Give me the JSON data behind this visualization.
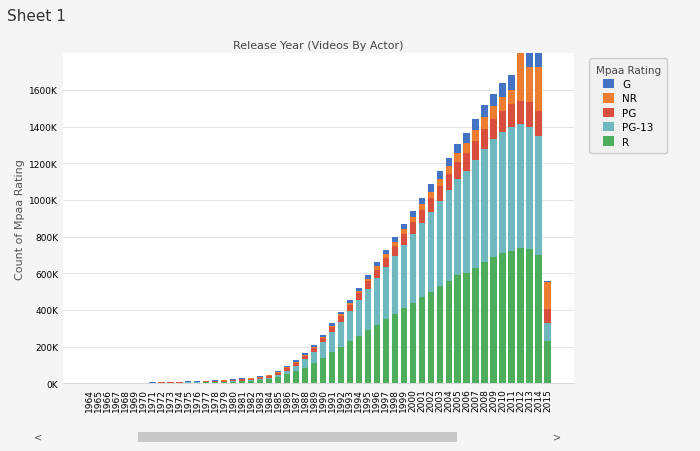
{
  "title": "Release Year (Videos By Actor)",
  "sheet_label": "Sheet 1",
  "ylabel": "Count of Mpaa Rating",
  "ratings": [
    "R",
    "PG-13",
    "PG",
    "NR",
    "G"
  ],
  "colors": {
    "G": "#4472C4",
    "NR": "#ED7D31",
    "PG": "#D94F3D",
    "PG-13": "#70B8C0",
    "R": "#4EAD5B"
  },
  "years": [
    1964,
    1965,
    1966,
    1967,
    1968,
    1969,
    1970,
    1971,
    1972,
    1973,
    1974,
    1975,
    1976,
    1977,
    1978,
    1979,
    1980,
    1981,
    1982,
    1983,
    1984,
    1985,
    1986,
    1987,
    1988,
    1989,
    1990,
    1991,
    1992,
    1993,
    1994,
    1995,
    1996,
    1997,
    1998,
    1999,
    2000,
    2001,
    2002,
    2003,
    2004,
    2005,
    2006,
    2007,
    2008,
    2009,
    2010,
    2011,
    2012,
    2013,
    2014,
    2015
  ],
  "data": {
    "R": [
      800,
      600,
      500,
      600,
      1000,
      900,
      1200,
      1400,
      1800,
      2200,
      2800,
      3200,
      3800,
      4500,
      5500,
      7000,
      9000,
      11000,
      13000,
      16000,
      22000,
      32000,
      48000,
      65000,
      85000,
      108000,
      138000,
      168000,
      198000,
      228000,
      258000,
      288000,
      318000,
      348000,
      378000,
      408000,
      438000,
      468000,
      498000,
      528000,
      560000,
      590000,
      600000,
      630000,
      660000,
      690000,
      710000,
      720000,
      735000,
      730000,
      700000,
      230000
    ],
    "PG-13": [
      200,
      200,
      200,
      200,
      300,
      300,
      400,
      500,
      600,
      700,
      800,
      900,
      1000,
      1200,
      1400,
      1600,
      2000,
      2500,
      3500,
      5000,
      7000,
      12000,
      20000,
      30000,
      45000,
      62000,
      85000,
      110000,
      138000,
      165000,
      195000,
      225000,
      255000,
      285000,
      315000,
      345000,
      375000,
      405000,
      435000,
      465000,
      495000,
      525000,
      560000,
      590000,
      620000,
      640000,
      660000,
      680000,
      680000,
      670000,
      650000,
      100000
    ],
    "PG": [
      500,
      400,
      300,
      400,
      700,
      700,
      1000,
      1200,
      1600,
      2000,
      2500,
      2600,
      3200,
      3700,
      4500,
      5500,
      6500,
      7500,
      8500,
      9500,
      11000,
      13000,
      15000,
      17000,
      19000,
      21000,
      24000,
      27000,
      30000,
      33000,
      37000,
      42000,
      47000,
      52000,
      57000,
      62000,
      67000,
      72000,
      77000,
      82000,
      87000,
      92000,
      97000,
      102000,
      107000,
      112000,
      117000,
      122000,
      127000,
      132000,
      137000,
      75000
    ],
    "NR": [
      100,
      100,
      100,
      100,
      200,
      200,
      300,
      400,
      500,
      600,
      700,
      800,
      900,
      1100,
      1300,
      1500,
      1700,
      1900,
      2100,
      2400,
      2800,
      3200,
      3700,
      4500,
      5500,
      6500,
      7500,
      8500,
      9500,
      11000,
      13000,
      15000,
      17000,
      19000,
      21000,
      24000,
      27000,
      31000,
      35000,
      39000,
      44000,
      49000,
      54000,
      59000,
      64000,
      69000,
      74000,
      79000,
      340000,
      195000,
      240000,
      145000
    ],
    "G": [
      300,
      250,
      200,
      300,
      600,
      500,
      800,
      1000,
      1400,
      1800,
      2200,
      2200,
      2800,
      3200,
      3000,
      3500,
      4500,
      4000,
      3700,
      4000,
      4500,
      5500,
      6500,
      7500,
      8500,
      9500,
      11000,
      12500,
      14000,
      15500,
      17500,
      19500,
      21500,
      24000,
      27000,
      29500,
      34000,
      37000,
      39000,
      41000,
      44000,
      49000,
      54000,
      59000,
      64000,
      69000,
      74000,
      79000,
      84000,
      89000,
      94000,
      5000
    ]
  },
  "ylim": [
    0,
    1800000
  ],
  "yticks": [
    0,
    200000,
    400000,
    600000,
    800000,
    1000000,
    1200000,
    1400000,
    1600000
  ],
  "background_color": "#f5f5f5",
  "plot_bg": "#ffffff",
  "title_fontsize": 8,
  "axis_label_fontsize": 8,
  "tick_fontsize": 6.5
}
